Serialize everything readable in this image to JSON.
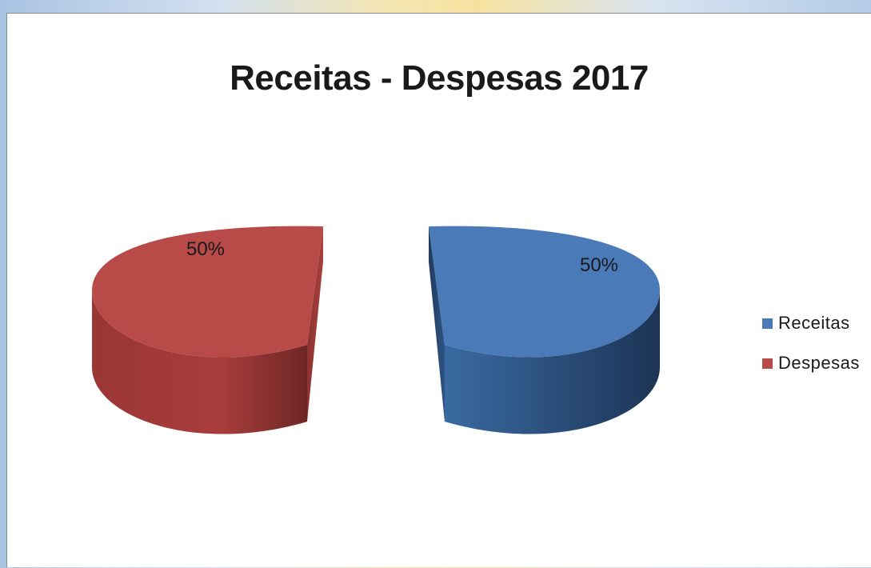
{
  "chart_data": {
    "type": "pie",
    "title": "Receitas - Despesas 2017",
    "categories": [
      "Receitas",
      "Despesas"
    ],
    "values": [
      50,
      50
    ],
    "data_labels": [
      "50%",
      "50%"
    ],
    "colors": [
      "#4a7ab8",
      "#b84a48"
    ],
    "legend_position": "right",
    "exploded": true,
    "style": "3d"
  }
}
